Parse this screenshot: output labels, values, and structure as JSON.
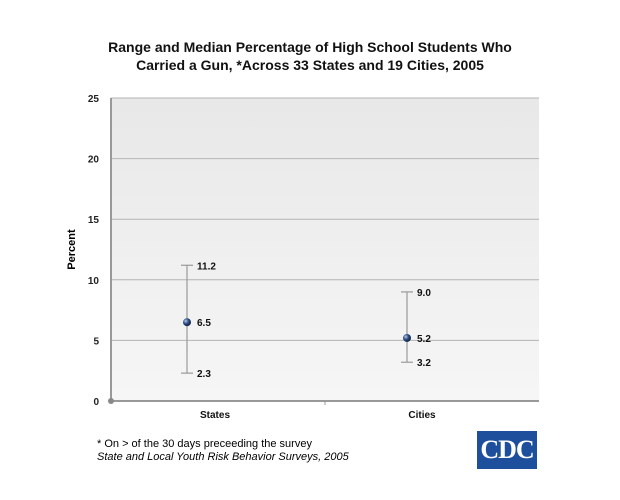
{
  "chart_data": {
    "type": "range",
    "title": "Range and Median Percentage of High School Students Who Carried a Gun, *Across 33 States and 19 Cities, 2005",
    "xlabel": "",
    "ylabel": "Percent",
    "ylim": [
      0,
      25
    ],
    "yticks": [
      0,
      5,
      10,
      15,
      20,
      25
    ],
    "categories": [
      "States",
      "Cities"
    ],
    "series": [
      {
        "category": "States",
        "max": 11.2,
        "median": 6.5,
        "min": 2.3
      },
      {
        "category": "Cities",
        "max": 9.0,
        "median": 5.2,
        "min": 3.2
      }
    ],
    "grid": true,
    "legend": "none",
    "colors": {
      "marker": "#2a4a80",
      "whisker": "#999999",
      "plot_bg": "#ececec"
    }
  },
  "footnote": "* On > of the 30 days preceeding the survey",
  "source": "State and Local Youth Risk Behavior Surveys, 2005",
  "logo_text": "CDC"
}
